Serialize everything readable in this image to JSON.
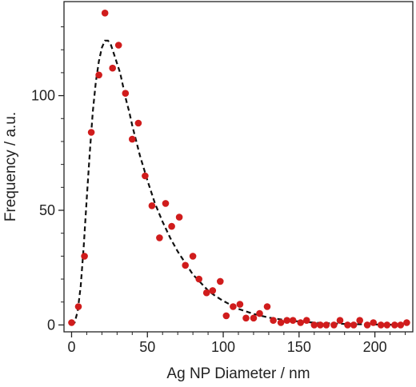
{
  "chart_data": {
    "type": "scatter",
    "title": "",
    "xlabel": "Ag NP Diameter / nm",
    "ylabel": "Frequency / a.u.",
    "xlim": [
      -5,
      225
    ],
    "ylim": [
      -3,
      141
    ],
    "xticks": [
      0,
      50,
      100,
      150,
      200
    ],
    "yticks": [
      0,
      50,
      100
    ],
    "grid": false,
    "legend": "none",
    "series": [
      {
        "kind": "points",
        "color": "#d01c1c",
        "x": [
          0,
          4.5,
          8.5,
          13,
          18,
          22,
          27,
          31,
          35.5,
          40,
          44,
          48.5,
          53,
          58,
          62,
          66,
          71,
          75,
          80,
          84,
          89,
          93,
          98,
          102,
          106.5,
          111,
          115,
          120,
          124,
          129,
          133,
          138,
          142,
          146,
          151,
          155,
          160,
          164,
          168,
          173,
          177,
          182,
          186,
          190,
          195,
          199,
          204,
          208,
          213,
          217,
          221
        ],
        "y": [
          1,
          8,
          30,
          84,
          109,
          136,
          112,
          122,
          101,
          81,
          88,
          65,
          52,
          38,
          53,
          43,
          47,
          26,
          30,
          20,
          14,
          15,
          19,
          4,
          8,
          9,
          3,
          3,
          5,
          8,
          2,
          1,
          2,
          2,
          1,
          2,
          0,
          0,
          0,
          0,
          2,
          0,
          0,
          2,
          0,
          1,
          0,
          0,
          0,
          0,
          1
        ]
      },
      {
        "kind": "fit",
        "style": "dashed",
        "color": "#111111",
        "x": [
          0,
          2,
          4,
          6,
          8,
          10,
          12,
          14,
          16,
          18,
          20,
          22,
          24,
          26,
          28,
          30,
          32,
          34,
          36,
          38,
          40,
          45,
          50,
          55,
          60,
          65,
          70,
          75,
          80,
          85,
          90,
          95,
          100,
          110,
          120,
          130,
          140,
          150,
          160,
          170,
          180,
          190,
          200,
          210,
          220
        ],
        "y": [
          0,
          1,
          6,
          17,
          34,
          55,
          75,
          93,
          106,
          115,
          121,
          124,
          124,
          122,
          118,
          114,
          110,
          104,
          98,
          93,
          87,
          74,
          63,
          53,
          45,
          38,
          32,
          27,
          22,
          18.5,
          15,
          12.5,
          10.5,
          7,
          4.8,
          3.2,
          2.2,
          1.5,
          1,
          0.7,
          0.45,
          0.3,
          0.2,
          0.12,
          0.08
        ]
      }
    ]
  }
}
